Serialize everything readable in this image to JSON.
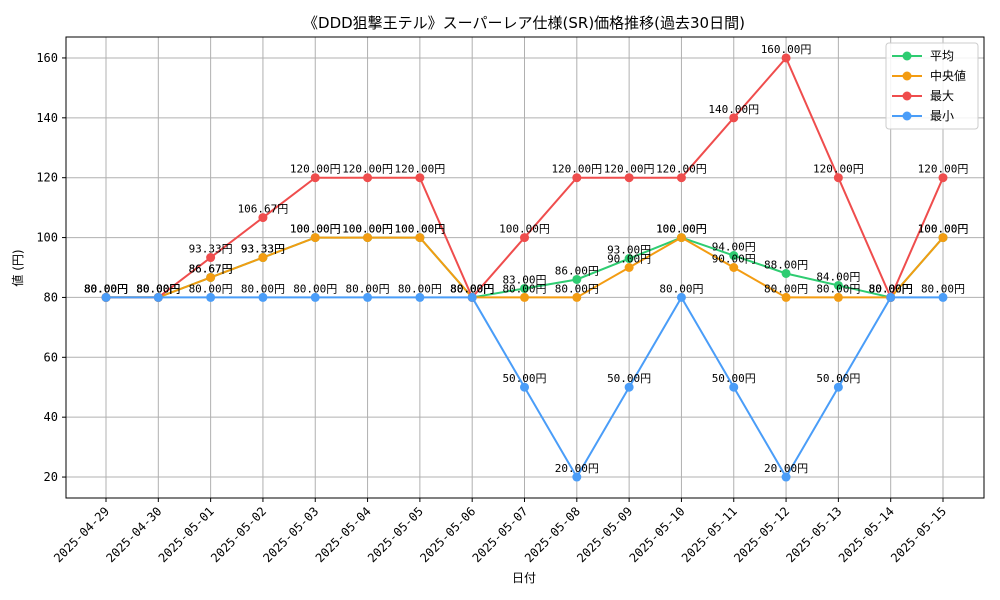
{
  "chart_data": {
    "type": "line",
    "title": "《DDD狙撃王テル》スーパーレア仕様(SR)価格推移(過去30日間)",
    "xlabel": "日付",
    "ylabel": "値 (円)",
    "ylim": [
      13,
      167
    ],
    "yticks": [
      20,
      40,
      60,
      80,
      100,
      120,
      140,
      160
    ],
    "grid": true,
    "legend_position": "top-right",
    "value_suffix": "円",
    "categories": [
      "2025-04-29",
      "2025-04-30",
      "2025-05-01",
      "2025-05-02",
      "2025-05-03",
      "2025-05-04",
      "2025-05-05",
      "2025-05-06",
      "2025-05-07",
      "2025-05-08",
      "2025-05-09",
      "2025-05-10",
      "2025-05-11",
      "2025-05-12",
      "2025-05-13",
      "2025-05-14",
      "2025-05-15"
    ],
    "series": [
      {
        "name": "平均",
        "color": "#2ecc71",
        "values": [
          80,
          80,
          86.67,
          93.33,
          100,
          100,
          100,
          80,
          83,
          86,
          93,
          100,
          94,
          88,
          84,
          80,
          100
        ]
      },
      {
        "name": "中央値",
        "color": "#f39c12",
        "values": [
          80,
          80,
          86.67,
          93.33,
          100,
          100,
          100,
          80,
          80,
          80,
          90,
          100,
          90,
          80,
          80,
          80,
          100
        ]
      },
      {
        "name": "最大",
        "color": "#ef4d4d",
        "values": [
          80,
          80,
          93.33,
          106.67,
          120,
          120,
          120,
          80,
          100,
          120,
          120,
          120,
          140,
          160,
          120,
          80,
          120
        ]
      },
      {
        "name": "最小",
        "color": "#4a9df8",
        "values": [
          80,
          80,
          80,
          80,
          80,
          80,
          80,
          80,
          50,
          20,
          50,
          80,
          50,
          20,
          50,
          80,
          80
        ]
      }
    ]
  }
}
